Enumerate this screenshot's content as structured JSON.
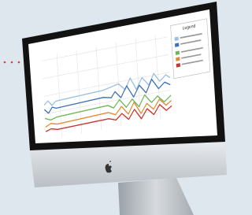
{
  "screen": {
    "legend_title": "Legend"
  }
}
